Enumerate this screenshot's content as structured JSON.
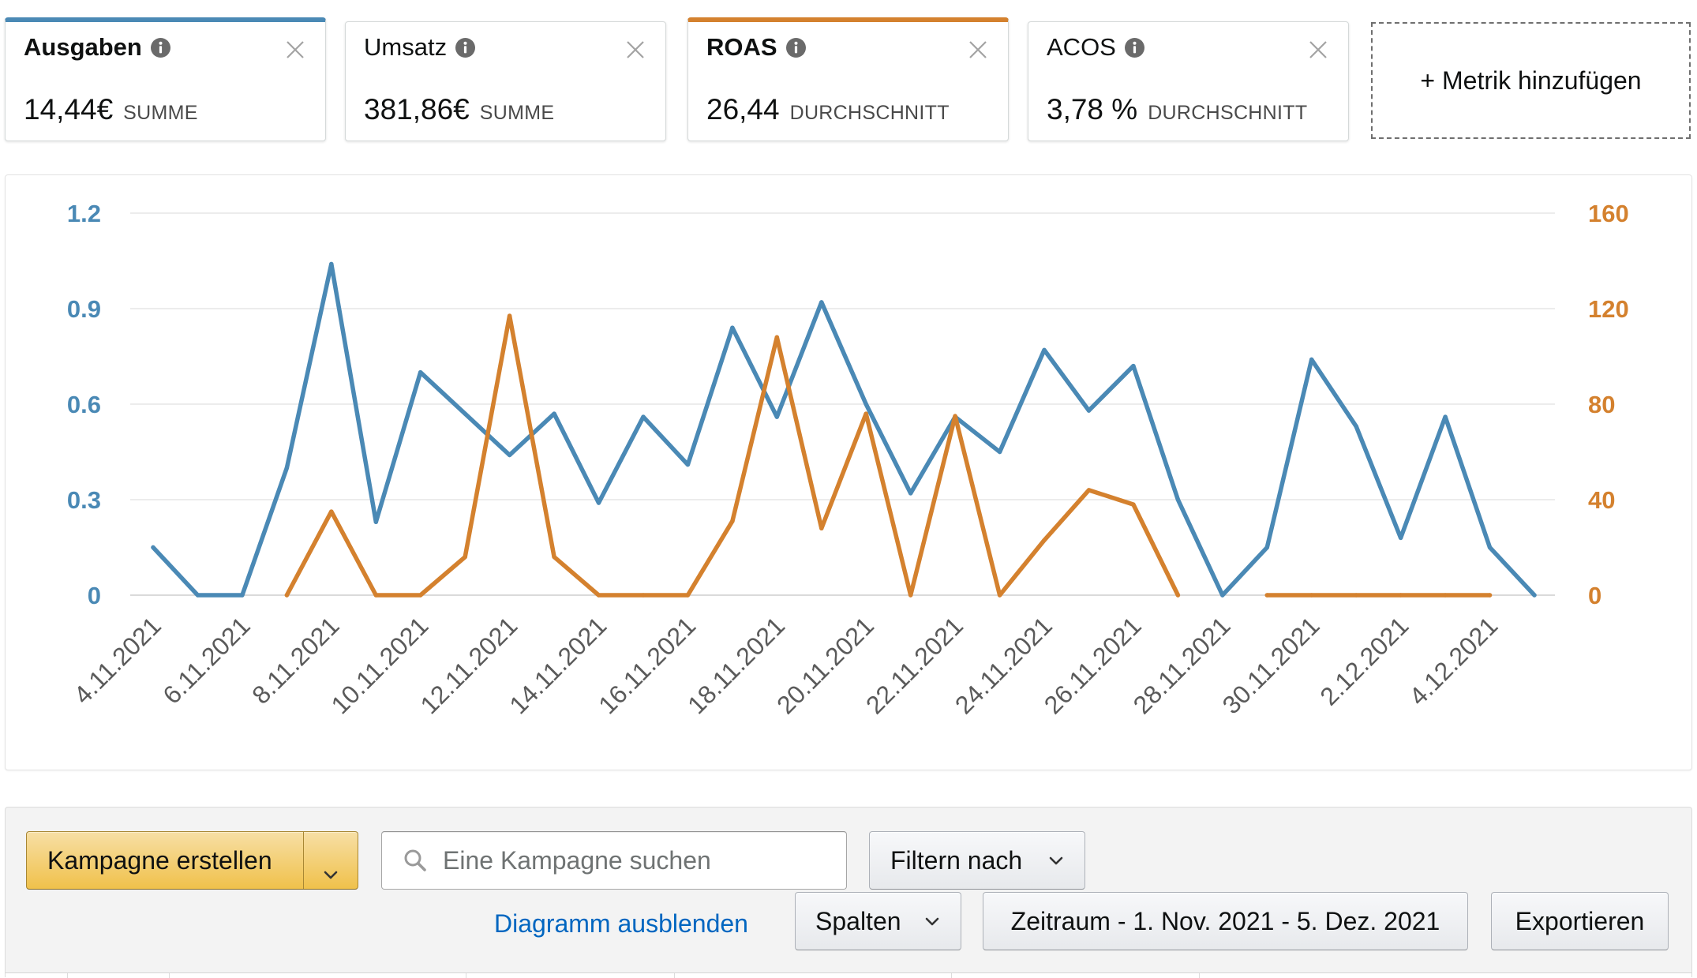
{
  "metrics": [
    {
      "title": "Ausgaben",
      "value": "14,44€",
      "aggregation": "SUMME",
      "selected": true,
      "color": "#4a89b5"
    },
    {
      "title": "Umsatz",
      "value": "381,86€",
      "aggregation": "SUMME",
      "selected": false
    },
    {
      "title": "ROAS",
      "value": "26,44",
      "aggregation": "DURCHSCHNITT",
      "selected": true,
      "color": "#d4812e"
    },
    {
      "title": "ACOS",
      "value": "3,78 %",
      "aggregation": "DURCHSCHNITT",
      "selected": false
    }
  ],
  "add_metric_label": "+ Metrik hinzufügen",
  "icons": {
    "info": "info-icon",
    "close": "close-icon",
    "dropdown": "chevron-down-icon",
    "search": "search-icon"
  },
  "chart_data": {
    "type": "line",
    "x": [
      "4.11.2021",
      "5.11.2021",
      "6.11.2021",
      "7.11.2021",
      "8.11.2021",
      "9.11.2021",
      "10.11.2021",
      "11.11.2021",
      "12.11.2021",
      "13.11.2021",
      "14.11.2021",
      "15.11.2021",
      "16.11.2021",
      "17.11.2021",
      "18.11.2021",
      "19.11.2021",
      "20.11.2021",
      "21.11.2021",
      "22.11.2021",
      "23.11.2021",
      "24.11.2021",
      "25.11.2021",
      "26.11.2021",
      "27.11.2021",
      "28.11.2021",
      "29.11.2021",
      "30.11.2021",
      "1.12.2021",
      "2.12.2021",
      "3.12.2021",
      "4.12.2021",
      "5.12.2021"
    ],
    "x_tick_labels": [
      "4.11.2021",
      "6.11.2021",
      "8.11.2021",
      "10.11.2021",
      "12.11.2021",
      "14.11.2021",
      "16.11.2021",
      "18.11.2021",
      "20.11.2021",
      "22.11.2021",
      "24.11.2021",
      "26.11.2021",
      "28.11.2021",
      "30.11.2021",
      "2.12.2021",
      "4.12.2021"
    ],
    "y_left": {
      "ticks": [
        0,
        0.3,
        0.6,
        0.9,
        1.2
      ],
      "range": [
        0,
        1.2
      ],
      "color": "#4a89b5"
    },
    "y_right": {
      "ticks": [
        0,
        40,
        80,
        120,
        160
      ],
      "range": [
        0,
        160
      ],
      "color": "#d4812e"
    },
    "grid": true,
    "series": [
      {
        "axis": "left",
        "color": "#4a89b5",
        "values": [
          0.15,
          0,
          0,
          0.4,
          1.04,
          0.23,
          0.7,
          0.57,
          0.44,
          0.57,
          0.29,
          0.56,
          0.41,
          0.84,
          0.56,
          0.92,
          0.6,
          0.32,
          0.56,
          0.45,
          0.77,
          0.58,
          0.72,
          0.3,
          0,
          0.15,
          0.74,
          0.53,
          0.18,
          0.56,
          0.15,
          0
        ]
      },
      {
        "axis": "right",
        "color": "#d4812e",
        "values": [
          null,
          null,
          null,
          0,
          35,
          0,
          0,
          16,
          117,
          16,
          0,
          0,
          0,
          31,
          108,
          28,
          76,
          0,
          75,
          0,
          23,
          44,
          38,
          0,
          null,
          0,
          0,
          0,
          0,
          0,
          0,
          null
        ]
      }
    ]
  },
  "toolbar": {
    "create_campaign_label": "Kampagne erstellen",
    "search_placeholder": "Eine Kampagne suchen",
    "filter_label": "Filtern nach",
    "hide_chart_link": "Diagramm ausblenden",
    "columns_label": "Spalten",
    "date_range_label": "Zeitraum - 1. Nov. 2021 - 5. Dez. 2021",
    "export_label": "Exportieren"
  }
}
